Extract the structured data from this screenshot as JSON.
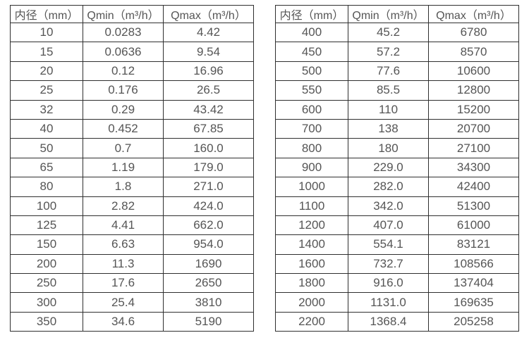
{
  "colors": {
    "background": "#ffffff",
    "table_border": "#2f2f2f",
    "text": "#555555"
  },
  "tables": [
    {
      "name": "flow-table-small-diameters",
      "headers": [
        "内径（mm）",
        "Qmin（m³/h）",
        "Qmax（m³/h）"
      ],
      "rows": [
        [
          "10",
          "0.0283",
          "4.42"
        ],
        [
          "15",
          "0.0636",
          "9.54"
        ],
        [
          "20",
          "0.12",
          "16.96"
        ],
        [
          "25",
          "0.176",
          "26.5"
        ],
        [
          "32",
          "0.29",
          "43.42"
        ],
        [
          "40",
          "0.452",
          "67.85"
        ],
        [
          "50",
          "0.7",
          "160.0"
        ],
        [
          "65",
          "1.19",
          "179.0"
        ],
        [
          "80",
          "1.8",
          "271.0"
        ],
        [
          "100",
          "2.82",
          "424.0"
        ],
        [
          "125",
          "4.41",
          "662.0"
        ],
        [
          "150",
          "6.63",
          "954.0"
        ],
        [
          "200",
          "11.3",
          "1690"
        ],
        [
          "250",
          "17.6",
          "2650"
        ],
        [
          "300",
          "25.4",
          "3810"
        ],
        [
          "350",
          "34.6",
          "5190"
        ]
      ]
    },
    {
      "name": "flow-table-large-diameters",
      "headers": [
        "内径（mm）",
        "Qmin（m³/h）",
        "Qmax（m³/h）"
      ],
      "rows": [
        [
          "400",
          "45.2",
          "6780"
        ],
        [
          "450",
          "57.2",
          "8570"
        ],
        [
          "500",
          "77.6",
          "10600"
        ],
        [
          "550",
          "85.5",
          "12800"
        ],
        [
          "600",
          "110",
          "15200"
        ],
        [
          "700",
          "138",
          "20700"
        ],
        [
          "800",
          "180",
          "27100"
        ],
        [
          "900",
          "229.0",
          "34300"
        ],
        [
          "1000",
          "282.0",
          "42400"
        ],
        [
          "1100",
          "342.0",
          "51300"
        ],
        [
          "1200",
          "407.0",
          "61000"
        ],
        [
          "1400",
          "554.1",
          "83121"
        ],
        [
          "1600",
          "732.7",
          "108566"
        ],
        [
          "1800",
          "916.0",
          "137404"
        ],
        [
          "2000",
          "1131.0",
          "169635"
        ],
        [
          "2200",
          "1368.4",
          "205258"
        ]
      ]
    }
  ]
}
